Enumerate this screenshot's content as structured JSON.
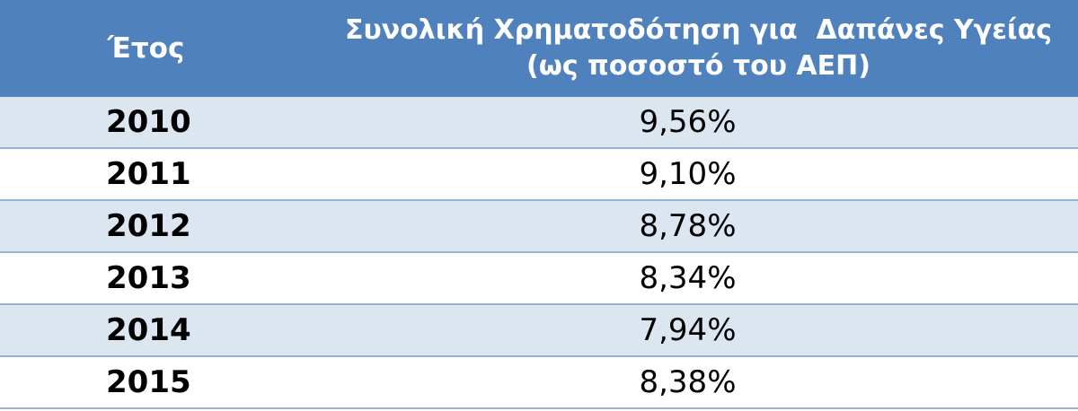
{
  "table": {
    "header": [
      "Έτος",
      [
        "Συνολική Χρηματοδότηση για  Δαπάνες Υγείας",
        "(ως ποσοστό του ΑΕΠ)"
      ]
    ],
    "rows": [
      [
        "2010",
        "9,56%"
      ],
      [
        "2011",
        "9,10%"
      ],
      [
        "2012",
        "8,78%"
      ],
      [
        "2013",
        "8,34%"
      ],
      [
        "2014",
        "7,94%"
      ],
      [
        "2015",
        "8,38%"
      ]
    ]
  }
}
